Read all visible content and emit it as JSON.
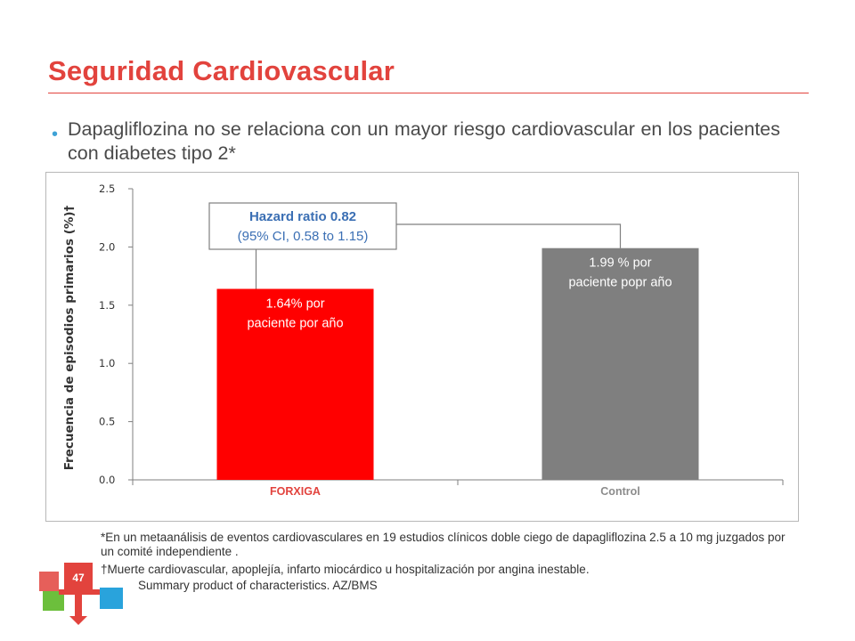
{
  "slide": {
    "title": "Seguridad Cardiovascular",
    "bullet": "Dapagliflozina no se relaciona con un mayor riesgo cardiovascular en los pacientes con diabetes tipo 2*",
    "footnote_1": "*En un metaanálisis de eventos cardiovasculares en 19 estudios clínicos doble ciego de dapagliflozina 2.5 a 10 mg juzgados por un comité independiente .",
    "footnote_2": "†Muerte cardiovascular, apoplejía, infarto miocárdico u hospitalización por angina inestable.",
    "footnote_3": "Summary product of characteristics. AZ/BMS",
    "page_number": "47",
    "accent_color": "#e2433d"
  },
  "chart_data": {
    "type": "bar",
    "title": "",
    "ylabel": "Frecuencia de episodios primarios (%)†",
    "xlabel": "",
    "ylim": [
      0,
      2.5
    ],
    "yticks": [
      0.0,
      0.5,
      1.0,
      1.5,
      2.0,
      2.5
    ],
    "ytick_labels": [
      "0.0",
      "0.5",
      "1.0",
      "1.5",
      "2.0",
      "2.5"
    ],
    "categories": [
      "FORXIGA",
      "Control"
    ],
    "values": [
      1.64,
      1.99
    ],
    "colors": [
      "#ff0000",
      "#7f7f7f"
    ],
    "category_label_colors": [
      "#e2433d",
      "#8c8c8c"
    ],
    "bar_labels": [
      [
        "1.64% por",
        "paciente por año"
      ],
      [
        "1.99 % por",
        "paciente popr año"
      ]
    ],
    "annotation": {
      "line1": "Hazard ratio 0.82",
      "line2": "(95% CI, 0.58 to 1.15)",
      "line1_color": "#3b6fb4",
      "line2_color": "#3b6fb4"
    },
    "grid": false,
    "legend": "none"
  }
}
